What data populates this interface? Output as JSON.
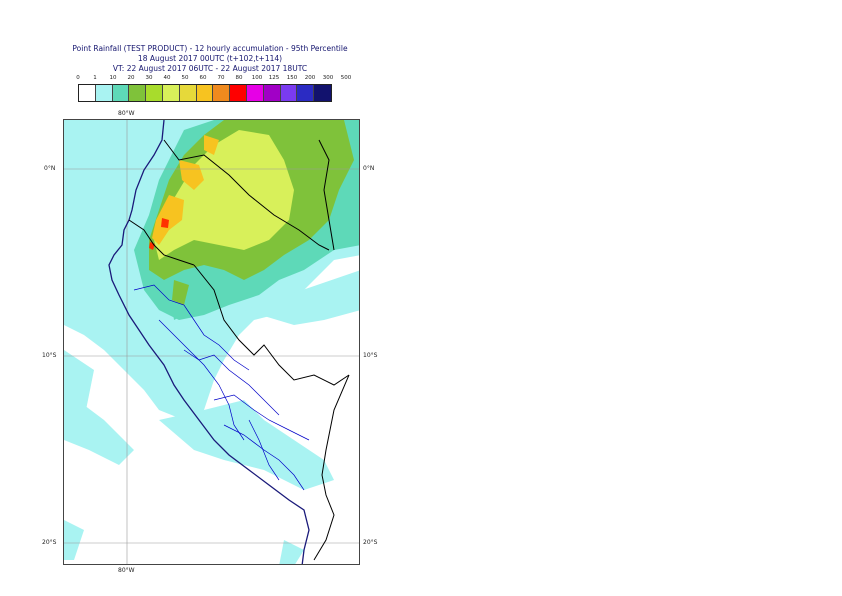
{
  "header": {
    "line1": "Point Rainfall (TEST PRODUCT) - 12 hourly accumulation - 95th Percentile",
    "line2": "18 August 2017 00UTC (t+102,t+114)",
    "line3": "VT: 22 August 2017 06UTC - 22 August 2017 18UTC"
  },
  "legend": {
    "ticks": [
      "0",
      "1",
      "10",
      "20",
      "30",
      "40",
      "50",
      "60",
      "70",
      "80",
      "100",
      "125",
      "150",
      "200",
      "300",
      "500"
    ],
    "colors": [
      "#ffffff",
      "#a9f3f2",
      "#5ed9b8",
      "#7fc23a",
      "#a8dc2c",
      "#d8f05a",
      "#e6d93a",
      "#f7c320",
      "#f08a1e",
      "#ff0000",
      "#e600e6",
      "#a100c6",
      "#7a3bf0",
      "#2b2bc3",
      "#12126e"
    ]
  },
  "map": {
    "lon_label_top": "80°W",
    "lon_label_bottom": "80°W",
    "lat_0_left": "0°N",
    "lat_0_right": "0°N",
    "lat_10_left": "10°S",
    "lat_10_right": "10°S",
    "lat_20_left": "20°S",
    "lat_20_right": "20°S",
    "colors": {
      "light": "#a9f3f2",
      "teal": "#5ed9b8",
      "green": "#7fc23a",
      "lime": "#a8dc2c",
      "yellow": "#d8f05a",
      "orange": "#f7c320",
      "red": "#ff3000",
      "coast": "#1a1a7a",
      "border": "#000000",
      "admin": "#0000c8"
    }
  }
}
